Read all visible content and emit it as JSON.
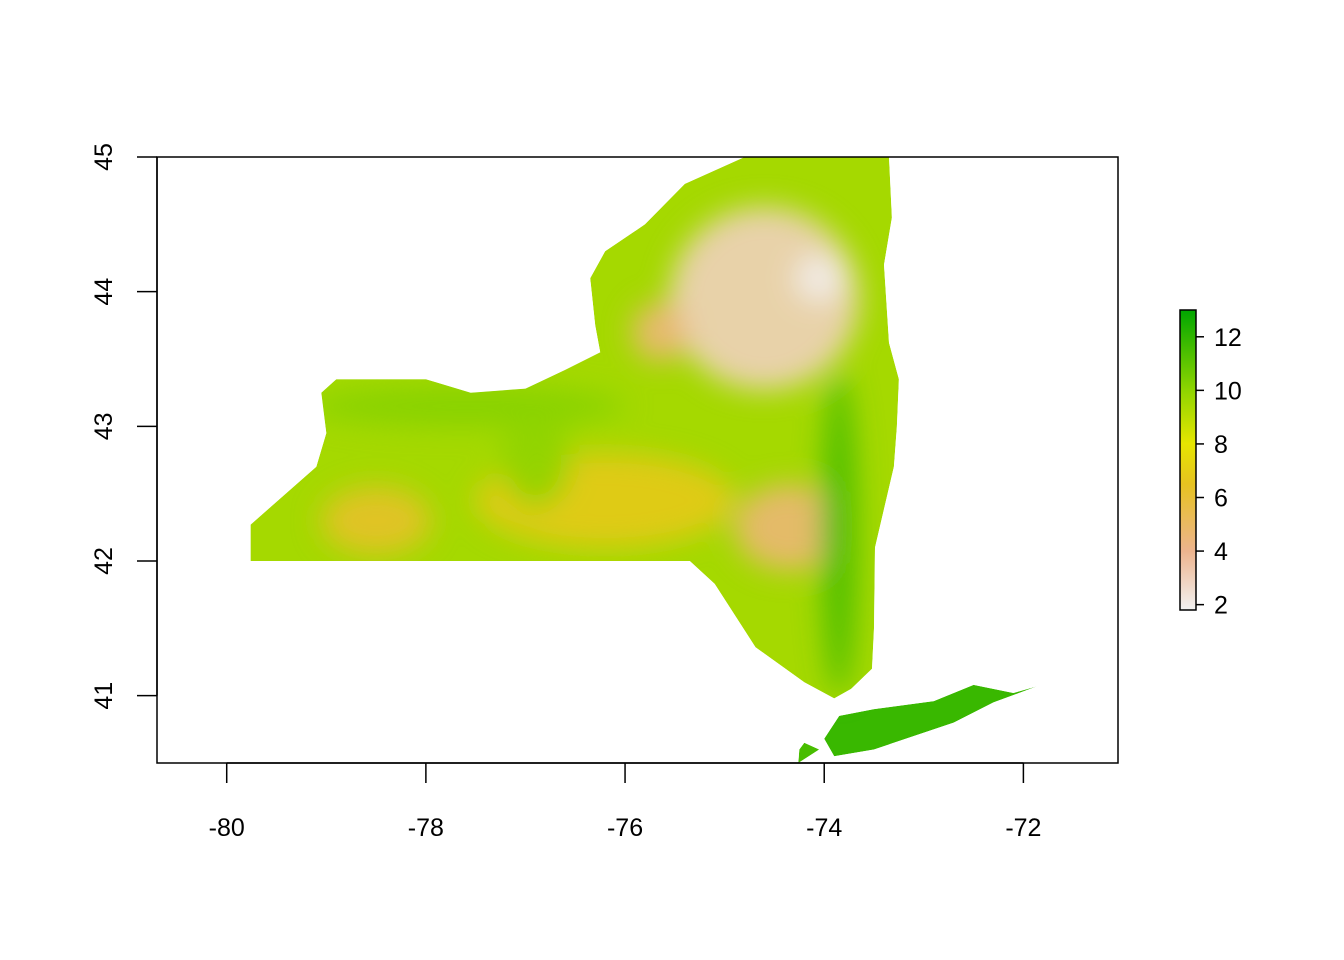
{
  "chart_data": {
    "type": "heatmap",
    "title": "",
    "xlabel": "",
    "ylabel": "",
    "xlim": [
      -80.7,
      -71.05
    ],
    "ylim": [
      40.5,
      45.0
    ],
    "x_ticks": [
      {
        "value": -80,
        "label": "-80"
      },
      {
        "value": -78,
        "label": "-78"
      },
      {
        "value": -76,
        "label": "-76"
      },
      {
        "value": -74,
        "label": "-74"
      },
      {
        "value": -72,
        "label": "-72"
      }
    ],
    "y_ticks": [
      {
        "value": 41,
        "label": "41"
      },
      {
        "value": 42,
        "label": "42"
      },
      {
        "value": 43,
        "label": "43"
      },
      {
        "value": 44,
        "label": "44"
      },
      {
        "value": 45,
        "label": "45"
      }
    ],
    "legend": {
      "placement": "right",
      "range": [
        1.8,
        13.0
      ],
      "ticks": [
        {
          "value": 2,
          "label": "2"
        },
        {
          "value": 4,
          "label": "4"
        },
        {
          "value": 6,
          "label": "6"
        },
        {
          "value": 8,
          "label": "8"
        },
        {
          "value": 10,
          "label": "10"
        },
        {
          "value": 12,
          "label": "12"
        }
      ],
      "color_stops": [
        {
          "value": 1.8,
          "color": "#F2F2F2"
        },
        {
          "value": 4.0,
          "color": "#EDB48E"
        },
        {
          "value": 6.5,
          "color": "#E6C220"
        },
        {
          "value": 8.0,
          "color": "#E6E600"
        },
        {
          "value": 10.0,
          "color": "#8FD400"
        },
        {
          "value": 13.0,
          "color": "#00A600"
        }
      ]
    },
    "regions": [
      {
        "name": "main",
        "values": [
          9.5,
          8.5
        ],
        "lonlat": [
          [
            -79.76,
            42.0
          ],
          [
            -75.35,
            42.0
          ],
          [
            -75.1,
            41.83
          ],
          [
            -74.69,
            41.36
          ],
          [
            -74.2,
            41.1
          ],
          [
            -73.9,
            40.98
          ],
          [
            -73.73,
            41.05
          ],
          [
            -73.52,
            41.2
          ],
          [
            -73.5,
            41.5
          ],
          [
            -73.49,
            42.1
          ],
          [
            -73.3,
            42.7
          ],
          [
            -73.27,
            43.0
          ],
          [
            -73.25,
            43.35
          ],
          [
            -73.35,
            43.62
          ],
          [
            -73.4,
            44.2
          ],
          [
            -73.32,
            44.55
          ],
          [
            -73.35,
            45.0
          ],
          [
            -74.8,
            45.0
          ],
          [
            -75.4,
            44.8
          ],
          [
            -75.8,
            44.5
          ],
          [
            -76.2,
            44.3
          ],
          [
            -76.35,
            44.1
          ],
          [
            -76.3,
            43.75
          ],
          [
            -76.25,
            43.55
          ],
          [
            -76.6,
            43.42
          ],
          [
            -77.0,
            43.28
          ],
          [
            -77.55,
            43.25
          ],
          [
            -78.0,
            43.35
          ],
          [
            -78.9,
            43.35
          ],
          [
            -79.05,
            43.25
          ],
          [
            -79.0,
            42.95
          ],
          [
            -79.1,
            42.7
          ],
          [
            -79.76,
            42.27
          ]
        ]
      },
      {
        "name": "long-island",
        "values": [
          11.8
        ],
        "lonlat": [
          [
            -74.0,
            40.68
          ],
          [
            -73.9,
            40.55
          ],
          [
            -73.5,
            40.6
          ],
          [
            -72.7,
            40.8
          ],
          [
            -72.3,
            40.95
          ],
          [
            -71.86,
            41.07
          ],
          [
            -72.1,
            41.02
          ],
          [
            -72.5,
            41.08
          ],
          [
            -72.9,
            40.96
          ],
          [
            -73.5,
            40.9
          ],
          [
            -73.85,
            40.85
          ]
        ]
      },
      {
        "name": "staten-island",
        "values": [
          11.5
        ],
        "lonlat": [
          [
            -74.26,
            40.5
          ],
          [
            -74.05,
            40.6
          ],
          [
            -74.2,
            40.65
          ],
          [
            -74.25,
            40.6
          ]
        ]
      }
    ],
    "elevation_features": [
      {
        "name": "adirondack-core",
        "lon": -74.6,
        "lat": 43.95,
        "rx": 0.95,
        "ry": 0.68,
        "values": [
          3.0,
          4.5
        ]
      },
      {
        "name": "adirondack-peaks",
        "lon": -74.05,
        "lat": 44.1,
        "rx": 0.25,
        "ry": 0.18,
        "values": [
          2.0
        ]
      },
      {
        "name": "tug-hill",
        "lon": -75.65,
        "lat": 43.7,
        "rx": 0.28,
        "ry": 0.22,
        "values": [
          4.5
        ]
      },
      {
        "name": "catskills",
        "lon": -74.35,
        "lat": 42.25,
        "rx": 0.55,
        "ry": 0.32,
        "values": [
          4.6
        ]
      },
      {
        "name": "southern-tier-west",
        "lon": -78.5,
        "lat": 42.3,
        "rx": 0.55,
        "ry": 0.25,
        "values": [
          6.3
        ]
      },
      {
        "name": "southern-tier-central",
        "lon": -76.2,
        "lat": 42.45,
        "rx": 1.3,
        "ry": 0.35,
        "values": [
          6.8
        ]
      },
      {
        "name": "hudson-valley",
        "lon": -73.85,
        "lat": 42.2,
        "rx": 0.18,
        "ry": 1.2,
        "values": [
          11.5
        ]
      },
      {
        "name": "lake-ontario-plain",
        "lon": -77.6,
        "lat": 43.15,
        "rx": 1.6,
        "ry": 0.15,
        "values": [
          10.2
        ]
      },
      {
        "name": "finger-lakes-valleys",
        "lon": -76.9,
        "lat": 42.75,
        "rx": 0.35,
        "ry": 0.35,
        "values": [
          10.0
        ]
      }
    ]
  }
}
